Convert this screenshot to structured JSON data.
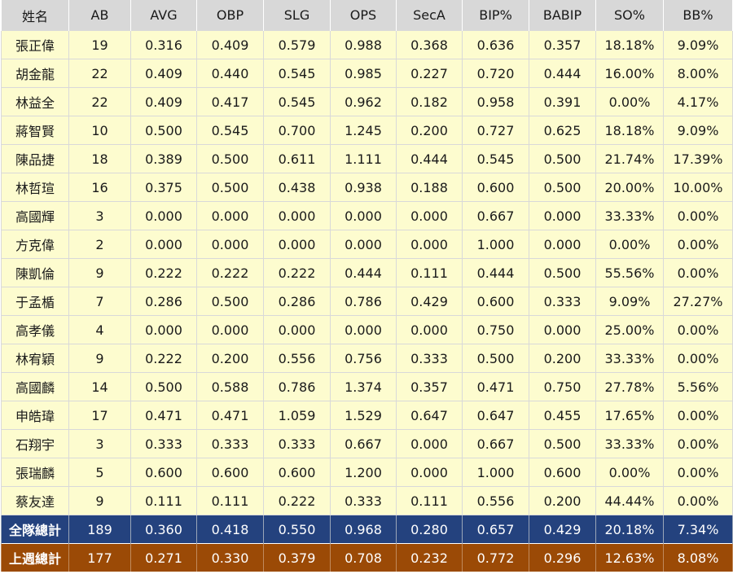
{
  "table": {
    "headers": [
      "姓名",
      "AB",
      "AVG",
      "OBP",
      "SLG",
      "OPS",
      "SecA",
      "BIP%",
      "BABIP",
      "SO%",
      "BB%"
    ],
    "rows": [
      [
        "張正偉",
        "19",
        "0.316",
        "0.409",
        "0.579",
        "0.988",
        "0.368",
        "0.636",
        "0.357",
        "18.18%",
        "9.09%"
      ],
      [
        "胡金龍",
        "22",
        "0.409",
        "0.440",
        "0.545",
        "0.985",
        "0.227",
        "0.720",
        "0.444",
        "16.00%",
        "8.00%"
      ],
      [
        "林益全",
        "22",
        "0.409",
        "0.417",
        "0.545",
        "0.962",
        "0.182",
        "0.958",
        "0.391",
        "0.00%",
        "4.17%"
      ],
      [
        "蔣智賢",
        "10",
        "0.500",
        "0.545",
        "0.700",
        "1.245",
        "0.200",
        "0.727",
        "0.625",
        "18.18%",
        "9.09%"
      ],
      [
        "陳品捷",
        "18",
        "0.389",
        "0.500",
        "0.611",
        "1.111",
        "0.444",
        "0.545",
        "0.500",
        "21.74%",
        "17.39%"
      ],
      [
        "林哲瑄",
        "16",
        "0.375",
        "0.500",
        "0.438",
        "0.938",
        "0.188",
        "0.600",
        "0.500",
        "20.00%",
        "10.00%"
      ],
      [
        "高國輝",
        "3",
        "0.000",
        "0.000",
        "0.000",
        "0.000",
        "0.000",
        "0.667",
        "0.000",
        "33.33%",
        "0.00%"
      ],
      [
        "方克偉",
        "2",
        "0.000",
        "0.000",
        "0.000",
        "0.000",
        "0.000",
        "1.000",
        "0.000",
        "0.00%",
        "0.00%"
      ],
      [
        "陳凱倫",
        "9",
        "0.222",
        "0.222",
        "0.222",
        "0.444",
        "0.111",
        "0.444",
        "0.500",
        "55.56%",
        "0.00%"
      ],
      [
        "于孟楯",
        "7",
        "0.286",
        "0.500",
        "0.286",
        "0.786",
        "0.429",
        "0.600",
        "0.333",
        "9.09%",
        "27.27%"
      ],
      [
        "高孝儀",
        "4",
        "0.000",
        "0.000",
        "0.000",
        "0.000",
        "0.000",
        "0.750",
        "0.000",
        "25.00%",
        "0.00%"
      ],
      [
        "林宥穎",
        "9",
        "0.222",
        "0.200",
        "0.556",
        "0.756",
        "0.333",
        "0.500",
        "0.200",
        "33.33%",
        "0.00%"
      ],
      [
        "高國麟",
        "14",
        "0.500",
        "0.588",
        "0.786",
        "1.374",
        "0.357",
        "0.471",
        "0.750",
        "27.78%",
        "5.56%"
      ],
      [
        "申皓瑋",
        "17",
        "0.471",
        "0.471",
        "1.059",
        "1.529",
        "0.647",
        "0.647",
        "0.455",
        "17.65%",
        "0.00%"
      ],
      [
        "石翔宇",
        "3",
        "0.333",
        "0.333",
        "0.333",
        "0.667",
        "0.000",
        "0.667",
        "0.500",
        "33.33%",
        "0.00%"
      ],
      [
        "張瑞麟",
        "5",
        "0.600",
        "0.600",
        "0.600",
        "1.200",
        "0.000",
        "1.000",
        "0.600",
        "0.00%",
        "0.00%"
      ],
      [
        "蔡友達",
        "9",
        "0.111",
        "0.111",
        "0.222",
        "0.333",
        "0.111",
        "0.556",
        "0.200",
        "44.44%",
        "0.00%"
      ]
    ],
    "team_total": [
      "全隊總計",
      "189",
      "0.360",
      "0.418",
      "0.550",
      "0.968",
      "0.280",
      "0.657",
      "0.429",
      "20.18%",
      "7.34%"
    ],
    "last_week_total": [
      "上週總計",
      "177",
      "0.271",
      "0.330",
      "0.379",
      "0.708",
      "0.232",
      "0.772",
      "0.296",
      "12.63%",
      "8.08%"
    ]
  },
  "colors": {
    "header_bg": "#d8d8d8",
    "row_bg": "#fdfccf",
    "team_total_bg": "#24427e",
    "last_week_total_bg": "#9b4a06"
  }
}
